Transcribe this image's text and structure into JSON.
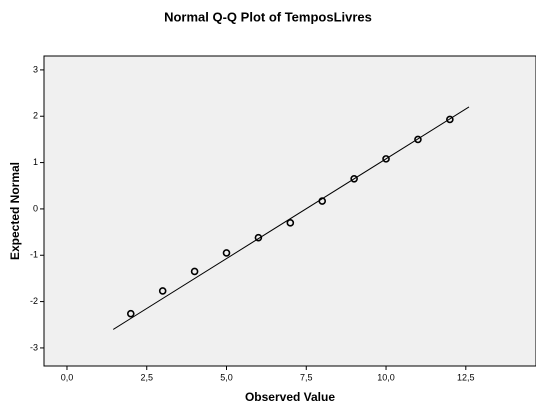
{
  "chart_data": {
    "type": "scatter",
    "title": "Normal Q-Q Plot of TemposLivres",
    "x_label": "Observed Value",
    "y_label": "Expected Normal",
    "x": [
      2,
      3,
      4,
      5,
      6,
      7,
      8,
      9,
      10,
      11,
      12
    ],
    "values": [
      -2.26,
      -1.77,
      -1.35,
      -0.95,
      -0.62,
      -0.3,
      0.17,
      0.65,
      1.08,
      1.5,
      1.93
    ],
    "color": "#000000",
    "reference_line": {
      "x": [
        1.45,
        12.6
      ],
      "y": [
        -2.6,
        2.2
      ]
    },
    "xlim": [
      -0.72,
      14.7
    ],
    "ylim": [
      -3.39,
      3.3
    ],
    "xticks": [
      {
        "value": 0,
        "label": "0,0"
      },
      {
        "value": 2.5,
        "label": "2,5"
      },
      {
        "value": 5,
        "label": "5,0"
      },
      {
        "value": 7.5,
        "label": "7,5"
      },
      {
        "value": 10,
        "label": "10,0"
      },
      {
        "value": 12.5,
        "label": "12,5"
      }
    ],
    "yticks": [
      -3,
      -2,
      -1,
      0,
      1,
      2,
      3
    ],
    "background": "#f0f0f0"
  }
}
